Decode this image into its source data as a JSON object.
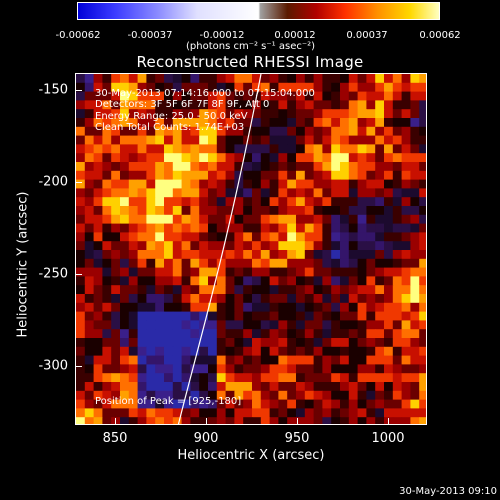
{
  "colorbar": {
    "ticks": [
      "-0.00062",
      "-0.00037",
      "-0.00012",
      "0.00012",
      "0.00037",
      "0.00062"
    ],
    "unit": "(photons cm⁻² s⁻¹ asec⁻²)"
  },
  "title": "Reconstructed RHESSI Image",
  "info": {
    "time": "30-May-2013 07:14:16.000 to 07:15:04.000",
    "detectors": "Detectors: 3F 5F 6F 7F 8F 9F, Att 0",
    "energy": "Energy Range: 25.0 - 50.0 keV",
    "method": "Clean     Total Counts: 1.74E+03"
  },
  "peak": "Position of Peak = [925,-180]",
  "axes": {
    "xlabel": "Heliocentric X (arcsec)",
    "ylabel": "Heliocentric Y (arcsec)",
    "xticks": [
      "850",
      "900",
      "950",
      "1000"
    ],
    "yticks": [
      "-150",
      "-200",
      "-250",
      "-300"
    ],
    "xrange": [
      828,
      1022
    ],
    "yrange": [
      -333,
      -140
    ]
  },
  "timestamp": "30-May-2013 09:10"
}
